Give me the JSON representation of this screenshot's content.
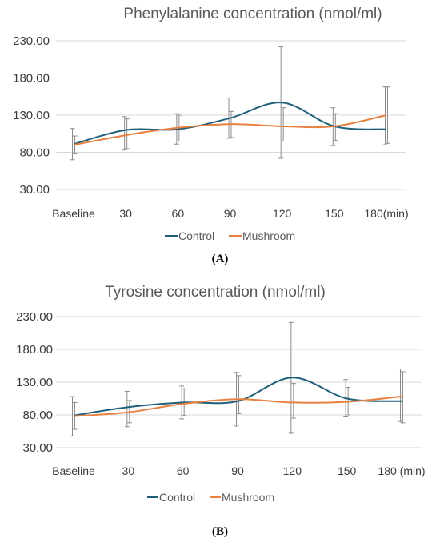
{
  "figure": {
    "panel_labels": [
      "(A)",
      "(B)"
    ]
  },
  "colors": {
    "control": "#1f5f7a",
    "mushroom": "#e8803f"
  },
  "chart_data": [
    {
      "type": "line",
      "title": "Phenylalanine concentration (nmol/ml)",
      "categories": [
        "Baseline",
        "30",
        "60",
        "90",
        "120",
        "150",
        "180(min)"
      ],
      "y_ticks": [
        "230.00",
        "180.00",
        "130.00",
        "80.00",
        "30.00"
      ],
      "ylim": [
        30,
        230
      ],
      "grid": true,
      "legend_position": "bottom",
      "series": [
        {
          "name": "Control",
          "values": [
            91,
            110,
            111,
            126,
            147,
            115,
            111
          ],
          "err_low": [
            70,
            83,
            91,
            99,
            72,
            89,
            90
          ],
          "err_high": [
            112,
            128,
            132,
            153,
            222,
            140,
            168
          ]
        },
        {
          "name": "Mushroom",
          "values": [
            90,
            103,
            113,
            118,
            115,
            115,
            130
          ],
          "err_low": [
            78,
            85,
            95,
            100,
            95,
            96,
            92
          ],
          "err_high": [
            102,
            125,
            130,
            135,
            140,
            132,
            168
          ]
        }
      ]
    },
    {
      "type": "line",
      "title": "Tyrosine concentration (nmol/ml)",
      "categories": [
        "Baseline",
        "30",
        "60",
        "90",
        "120",
        "150",
        "180 (min)"
      ],
      "y_ticks": [
        "230.00",
        "180.00",
        "130.00",
        "80.00",
        "30.00"
      ],
      "ylim": [
        30,
        230
      ],
      "grid": true,
      "legend_position": "bottom",
      "series": [
        {
          "name": "Control",
          "values": [
            79,
            92,
            99,
            101,
            137,
            105,
            101
          ],
          "err_low": [
            48,
            62,
            74,
            63,
            52,
            77,
            70
          ],
          "err_high": [
            108,
            116,
            124,
            145,
            221,
            134,
            150
          ]
        },
        {
          "name": "Mushroom",
          "values": [
            78,
            84,
            97,
            104,
            99,
            100,
            108
          ],
          "err_low": [
            58,
            68,
            79,
            82,
            75,
            80,
            68
          ],
          "err_high": [
            99,
            102,
            120,
            140,
            128,
            122,
            146
          ]
        }
      ]
    }
  ]
}
